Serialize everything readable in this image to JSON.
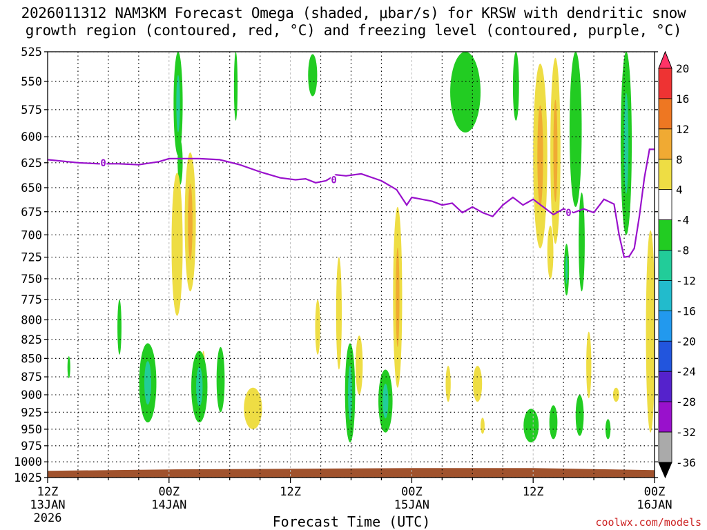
{
  "title": {
    "line1": "2026011312 NAM3KM Forecast Omega (shaded, μbar/s) for KRSW with dendritic snow",
    "line2": "growth region (contoured, red, °C) and freezing level (contoured, purple, °C)"
  },
  "credit": "coolwx.com/models",
  "chart_data": {
    "type": "time-height",
    "title": "2026011312 NAM3KM Forecast Omega (shaded, μbar/s) for KRSW with dendritic snow growth region (contoured, red, °C) and freezing level (contoured, purple, °C)",
    "xlabel": "Forecast Time (UTC)",
    "ylabel": "",
    "x_unit": "forecast hour (0 = 12Z 13JAN 2026)",
    "xlim": [
      0,
      60
    ],
    "ylim": [
      1025,
      525
    ],
    "y_scale": "log",
    "y_ticks": [
      525,
      550,
      575,
      600,
      625,
      650,
      675,
      700,
      725,
      750,
      775,
      800,
      825,
      850,
      875,
      900,
      925,
      950,
      975,
      1000,
      1025
    ],
    "x_ticks": [
      {
        "x": 0,
        "line1": "12Z",
        "line2": "13JAN",
        "line3": "2026"
      },
      {
        "x": 12,
        "line1": "00Z",
        "line2": "14JAN",
        "line3": ""
      },
      {
        "x": 24,
        "line1": "12Z",
        "line2": "",
        "line3": ""
      },
      {
        "x": 36,
        "line1": "00Z",
        "line2": "15JAN",
        "line3": ""
      },
      {
        "x": 48,
        "line1": "12Z",
        "line2": "",
        "line3": ""
      },
      {
        "x": 60,
        "line1": "00Z",
        "line2": "16JAN",
        "line3": ""
      }
    ],
    "grid": true,
    "colorbar": {
      "labels": [
        20,
        16,
        12,
        8,
        4,
        -4,
        -8,
        -12,
        -16,
        -20,
        -24,
        -28,
        -32,
        -36
      ],
      "colors": [
        "#ff3366",
        "#ee3333",
        "#ee7722",
        "#f0aa33",
        "#eedd44",
        "#ffffff",
        "#22cc22",
        "#22cc99",
        "#22bbcc",
        "#2299ee",
        "#2255dd",
        "#5522cc",
        "#9911cc",
        "#aaaaaa",
        "#000000"
      ]
    },
    "omega_features": [
      {
        "x": 12.9,
        "p": 570,
        "w": 0.45,
        "h": 48,
        "value": -5,
        "core": -8
      },
      {
        "x": 13.1,
        "p": 625,
        "w": 0.25,
        "h": 22,
        "value": -5
      },
      {
        "x": 18.6,
        "p": 555,
        "w": 0.18,
        "h": 30,
        "value": -5
      },
      {
        "x": 26.2,
        "p": 545,
        "w": 0.45,
        "h": 18,
        "value": -5
      },
      {
        "x": 41.3,
        "p": 560,
        "w": 1.5,
        "h": 36,
        "value": -5
      },
      {
        "x": 46.3,
        "p": 555,
        "w": 0.3,
        "h": 30,
        "value": -5
      },
      {
        "x": 52.2,
        "p": 580,
        "w": 0.6,
        "h": 90,
        "value": -5
      },
      {
        "x": 57.2,
        "p": 605,
        "w": 0.55,
        "h": 95,
        "value": -6,
        "core": -9
      },
      {
        "x": 51.3,
        "p": 740,
        "w": 0.25,
        "h": 30,
        "value": -5,
        "core": -9
      },
      {
        "x": 52.8,
        "p": 710,
        "w": 0.3,
        "h": 55,
        "value": -5
      },
      {
        "x": 12.8,
        "p": 715,
        "w": 0.55,
        "h": 80,
        "value": 5
      },
      {
        "x": 14.1,
        "p": 690,
        "w": 0.55,
        "h": 75,
        "value": 6,
        "core": 10
      },
      {
        "x": 48.7,
        "p": 625,
        "w": 0.7,
        "h": 90,
        "value": 5,
        "core": 10
      },
      {
        "x": 50.2,
        "p": 620,
        "w": 0.5,
        "h": 90,
        "value": 6,
        "core": 10
      },
      {
        "x": 49.7,
        "p": 720,
        "w": 0.3,
        "h": 30,
        "value": 5
      },
      {
        "x": 59.6,
        "p": 825,
        "w": 0.45,
        "h": 130,
        "value": 5
      },
      {
        "x": 34.6,
        "p": 780,
        "w": 0.45,
        "h": 110,
        "value": 5,
        "core": 9
      },
      {
        "x": 28.8,
        "p": 795,
        "w": 0.28,
        "h": 70,
        "value": 5
      },
      {
        "x": 26.7,
        "p": 810,
        "w": 0.25,
        "h": 35,
        "value": 5
      },
      {
        "x": 20.3,
        "p": 920,
        "w": 0.9,
        "h": 30,
        "value": 5
      },
      {
        "x": 30.8,
        "p": 860,
        "w": 0.35,
        "h": 40,
        "value": 5
      },
      {
        "x": 39.6,
        "p": 885,
        "w": 0.25,
        "h": 25,
        "value": 5
      },
      {
        "x": 42.5,
        "p": 885,
        "w": 0.45,
        "h": 25,
        "value": 5
      },
      {
        "x": 43.0,
        "p": 945,
        "w": 0.2,
        "h": 12,
        "value": 5
      },
      {
        "x": 53.5,
        "p": 860,
        "w": 0.25,
        "h": 45,
        "value": 5
      },
      {
        "x": 56.2,
        "p": 900,
        "w": 0.3,
        "h": 10,
        "value": 5
      },
      {
        "x": 15.4,
        "p": 860,
        "w": 0.15,
        "h": 20,
        "value": 5
      },
      {
        "x": 7.1,
        "p": 810,
        "w": 0.2,
        "h": 35,
        "value": -5
      },
      {
        "x": 2.1,
        "p": 862,
        "w": 0.14,
        "h": 15,
        "value": -5
      },
      {
        "x": 9.9,
        "p": 885,
        "w": 0.85,
        "h": 55,
        "value": -5,
        "core": -9
      },
      {
        "x": 15.0,
        "p": 890,
        "w": 0.8,
        "h": 50,
        "value": -5,
        "core": -9
      },
      {
        "x": 17.1,
        "p": 880,
        "w": 0.4,
        "h": 45,
        "value": -5
      },
      {
        "x": 29.9,
        "p": 900,
        "w": 0.5,
        "h": 70,
        "value": -5,
        "core": -9
      },
      {
        "x": 33.4,
        "p": 910,
        "w": 0.7,
        "h": 45,
        "value": -5,
        "core": -9
      },
      {
        "x": 47.8,
        "p": 945,
        "w": 0.75,
        "h": 25,
        "value": -5
      },
      {
        "x": 50.0,
        "p": 940,
        "w": 0.4,
        "h": 25,
        "value": -5
      },
      {
        "x": 52.6,
        "p": 930,
        "w": 0.4,
        "h": 30,
        "value": -5
      },
      {
        "x": 55.4,
        "p": 950,
        "w": 0.25,
        "h": 15,
        "value": -5
      }
    ],
    "freezing_level": {
      "label": "0",
      "x": [
        0,
        3,
        5,
        7,
        9,
        11,
        12,
        13,
        15,
        17,
        19,
        21,
        23,
        24.5,
        25.5,
        26.5,
        27.5,
        28.5,
        29.5,
        31,
        33,
        34.5,
        35.5,
        36,
        37,
        38,
        39,
        40,
        41,
        42,
        43,
        44,
        45,
        46,
        47,
        48,
        49,
        50,
        51,
        52,
        53,
        54,
        55,
        56,
        56.5,
        57,
        57.5,
        58,
        58.5,
        59,
        59.5,
        60
      ],
      "p": [
        622,
        625,
        626,
        626,
        627,
        624,
        621,
        621,
        621,
        622,
        627,
        634,
        640,
        642,
        641,
        645,
        643,
        637,
        638,
        636,
        643,
        652,
        668,
        660,
        662,
        664,
        668,
        666,
        676,
        670,
        676,
        680,
        668,
        660,
        668,
        662,
        670,
        678,
        672,
        676,
        672,
        676,
        662,
        667,
        700,
        725,
        724,
        715,
        680,
        640,
        612,
        612
      ]
    },
    "dendritic_growth_region": [],
    "ground": {
      "color": "#a0522d",
      "p_top": 1012
    }
  }
}
